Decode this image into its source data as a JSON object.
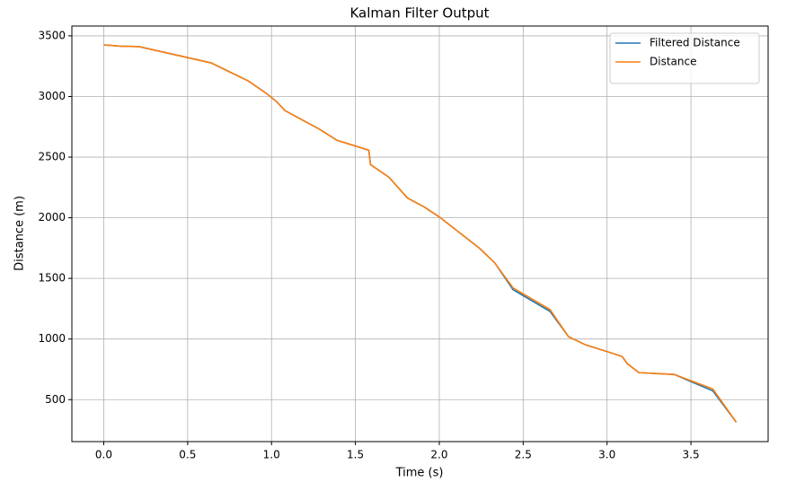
{
  "chart_data": {
    "type": "line",
    "title": "Kalman Filter Output",
    "xlabel": "Time (s)",
    "ylabel": "Distance (m)",
    "x": [
      0,
      0.1,
      0.21,
      0.64,
      0.86,
      0.97,
      1.03,
      1.08,
      1.18,
      1.28,
      1.39,
      1.58,
      1.59,
      1.7,
      1.81,
      1.91,
      2.0,
      2.24,
      2.33,
      2.44,
      2.66,
      2.77,
      2.87,
      2.99,
      3.09,
      3.12,
      3.19,
      3.4,
      3.63,
      3.77
    ],
    "series": [
      {
        "name": "Filtered Distance",
        "color": "#1f77b4",
        "values": [
          3425,
          3415,
          3411,
          3277,
          3129,
          3025,
          2958,
          2884,
          2809,
          2735,
          2639,
          2557,
          2438,
          2334,
          2163,
          2089,
          2007,
          1748,
          1629,
          1407,
          1228,
          1020,
          953,
          901,
          856,
          797,
          723,
          708,
          573,
          314
        ]
      },
      {
        "name": "Distance",
        "color": "#ff7f0e",
        "values": [
          3425,
          3415,
          3411,
          3277,
          3129,
          3025,
          2958,
          2884,
          2809,
          2735,
          2639,
          2557,
          2438,
          2334,
          2163,
          2089,
          2007,
          1748,
          1629,
          1421,
          1243,
          1020,
          953,
          901,
          856,
          797,
          723,
          708,
          589,
          314
        ]
      }
    ],
    "xlim": [
      -0.19,
      3.96
    ],
    "ylim": [
      154,
      3581
    ],
    "xticks": [
      {
        "value": 0,
        "label": "0.0"
      },
      0.5,
      {
        "value": 1,
        "label": "1.0"
      },
      1.5,
      {
        "value": 2,
        "label": "2.0"
      },
      2.5,
      {
        "value": 3,
        "label": "3.0"
      },
      3.5
    ],
    "yticks": [
      500,
      1000,
      1500,
      2000,
      2500,
      3000,
      3500
    ],
    "grid": true,
    "legend": "upper-right"
  }
}
